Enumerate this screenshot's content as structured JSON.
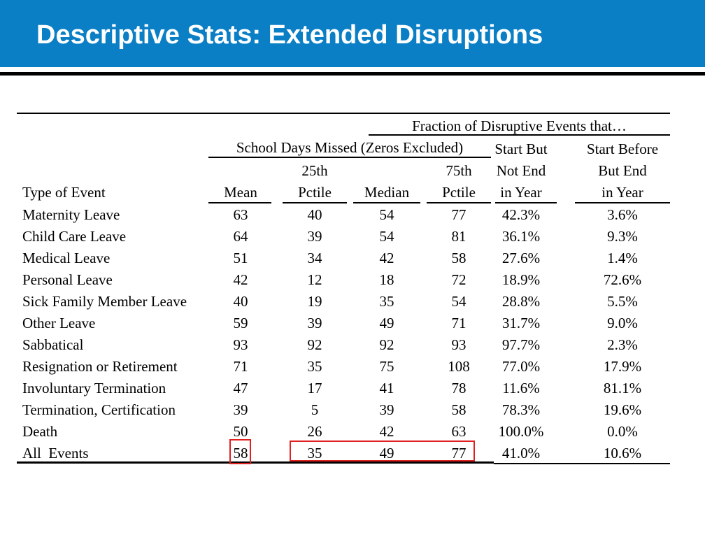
{
  "slide": {
    "title": "Descriptive Stats: Extended Disruptions"
  },
  "table": {
    "group_header_fraction": "Fraction of Disruptive Events that…",
    "group_header_days": "School Days Missed (Zeros Excluded)",
    "col_type": "Type of Event",
    "col_mean": "Mean",
    "col_p25_line1": "25th",
    "col_p25_line2": "Pctile",
    "col_median": "Median",
    "col_p75_line1": "75th",
    "col_p75_line2": "Pctile",
    "col_start_line1": "Start But",
    "col_start_line2": "Not End",
    "col_start_line3": "in Year",
    "col_end_line1": "Start Before",
    "col_end_line2": "But End",
    "col_end_line3": "in Year",
    "rows": [
      {
        "type": "Maternity Leave",
        "mean": "63",
        "p25": "40",
        "median": "54",
        "p75": "77",
        "start_not_end": "42.3%",
        "start_before_end": "3.6%"
      },
      {
        "type": "Child Care Leave",
        "mean": "64",
        "p25": "39",
        "median": "54",
        "p75": "81",
        "start_not_end": "36.1%",
        "start_before_end": "9.3%"
      },
      {
        "type": "Medical Leave",
        "mean": "51",
        "p25": "34",
        "median": "42",
        "p75": "58",
        "start_not_end": "27.6%",
        "start_before_end": "1.4%"
      },
      {
        "type": "Personal Leave",
        "mean": "42",
        "p25": "12",
        "median": "18",
        "p75": "72",
        "start_not_end": "18.9%",
        "start_before_end": "72.6%"
      },
      {
        "type": "Sick Family Member Leave",
        "mean": "40",
        "p25": "19",
        "median": "35",
        "p75": "54",
        "start_not_end": "28.8%",
        "start_before_end": "5.5%"
      },
      {
        "type": "Other Leave",
        "mean": "59",
        "p25": "39",
        "median": "49",
        "p75": "71",
        "start_not_end": "31.7%",
        "start_before_end": "9.0%"
      },
      {
        "type": "Sabbatical",
        "mean": "93",
        "p25": "92",
        "median": "92",
        "p75": "93",
        "start_not_end": "97.7%",
        "start_before_end": "2.3%"
      },
      {
        "type": "Resignation or Retirement",
        "mean": "71",
        "p25": "35",
        "median": "75",
        "p75": "108",
        "start_not_end": "77.0%",
        "start_before_end": "17.9%"
      },
      {
        "type": "Involuntary Termination",
        "mean": "47",
        "p25": "17",
        "median": "41",
        "p75": "78",
        "start_not_end": "11.6%",
        "start_before_end": "81.1%"
      },
      {
        "type": "Termination, Certification",
        "mean": "39",
        "p25": "5",
        "median": "39",
        "p75": "58",
        "start_not_end": "78.3%",
        "start_before_end": "19.6%"
      },
      {
        "type": "Death",
        "mean": "50",
        "p25": "26",
        "median": "42",
        "p75": "63",
        "start_not_end": "100.0%",
        "start_before_end": "0.0%"
      },
      {
        "type": "All  Events",
        "mean": "58",
        "p25": "35",
        "median": "49",
        "p75": "77",
        "start_not_end": "41.0%",
        "start_before_end": "10.6%"
      }
    ]
  },
  "colors": {
    "title_bar": "#0a7fc5",
    "highlight_box": "#e0201f"
  }
}
